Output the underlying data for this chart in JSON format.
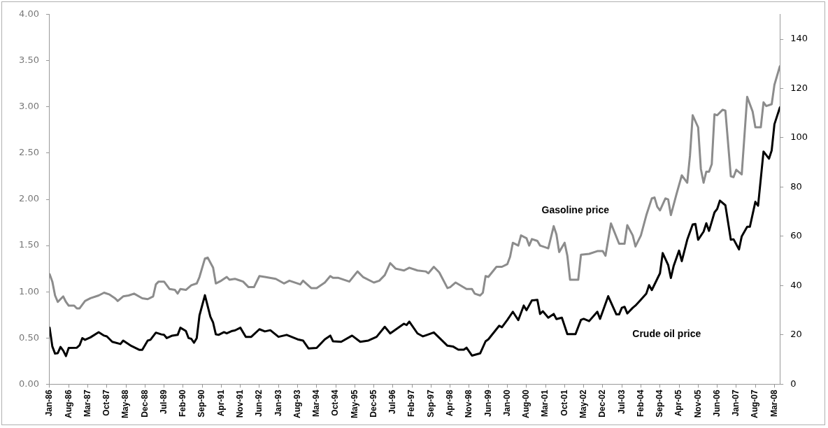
{
  "chart_data": {
    "type": "line",
    "grid": false,
    "legend": false,
    "marker": "none",
    "line_style": "solid",
    "xlim": [
      "1986-01",
      "2008-05"
    ],
    "xticks": [
      {
        "value": "1986-01",
        "label": "Jan-86"
      },
      {
        "value": "1986-08",
        "label": "Aug-86"
      },
      {
        "value": "1987-03",
        "label": "Mar-87"
      },
      {
        "value": "1987-10",
        "label": "Oct-87"
      },
      {
        "value": "1988-05",
        "label": "May-88"
      },
      {
        "value": "1988-12",
        "label": "Dec-88"
      },
      {
        "value": "1989-07",
        "label": "Jul-89"
      },
      {
        "value": "1990-02",
        "label": "Feb-90"
      },
      {
        "value": "1990-09",
        "label": "Sep-90"
      },
      {
        "value": "1991-04",
        "label": "Apr-91"
      },
      {
        "value": "1991-11",
        "label": "Nov-91"
      },
      {
        "value": "1992-06",
        "label": "Jun-92"
      },
      {
        "value": "1993-01",
        "label": "Jan-93"
      },
      {
        "value": "1993-08",
        "label": "Aug-93"
      },
      {
        "value": "1994-03",
        "label": "Mar-94"
      },
      {
        "value": "1994-10",
        "label": "Oct-94"
      },
      {
        "value": "1995-05",
        "label": "May-95"
      },
      {
        "value": "1995-12",
        "label": "Dec-95"
      },
      {
        "value": "1996-07",
        "label": "Jul-96"
      },
      {
        "value": "1997-02",
        "label": "Feb-97"
      },
      {
        "value": "1997-09",
        "label": "Sep-97"
      },
      {
        "value": "1998-04",
        "label": "Apr-98"
      },
      {
        "value": "1998-11",
        "label": "Nov-98"
      },
      {
        "value": "1999-06",
        "label": "Jun-99"
      },
      {
        "value": "2000-01",
        "label": "Jan-00"
      },
      {
        "value": "2000-08",
        "label": "Aug-00"
      },
      {
        "value": "2001-03",
        "label": "Mar-01"
      },
      {
        "value": "2001-10",
        "label": "Oct-01"
      },
      {
        "value": "2002-05",
        "label": "May-02"
      },
      {
        "value": "2002-12",
        "label": "Dec-02"
      },
      {
        "value": "2003-07",
        "label": "Jul-03"
      },
      {
        "value": "2004-02",
        "label": "Feb-04"
      },
      {
        "value": "2004-09",
        "label": "Sep-04"
      },
      {
        "value": "2005-04",
        "label": "Apr-05"
      },
      {
        "value": "2005-11",
        "label": "Nov-05"
      },
      {
        "value": "2006-06",
        "label": "Jun-06"
      },
      {
        "value": "2007-01",
        "label": "Jan-07"
      },
      {
        "value": "2007-08",
        "label": "Aug-07"
      },
      {
        "value": "2008-03",
        "label": "Mar-08"
      }
    ],
    "ylim": [
      0,
      4
    ],
    "yticks": [
      {
        "value": 0,
        "label": "0.00"
      },
      {
        "value": 0.5,
        "label": "0.50"
      },
      {
        "value": 1,
        "label": "1.00"
      },
      {
        "value": 1.5,
        "label": "1.50"
      },
      {
        "value": 2,
        "label": "2.00"
      },
      {
        "value": 2.5,
        "label": "2.50"
      },
      {
        "value": 3,
        "label": "3.00"
      },
      {
        "value": 3.5,
        "label": "3.50"
      },
      {
        "value": 4,
        "label": "4.00"
      }
    ],
    "y2lim": [
      0,
      150
    ],
    "y2ticks": [
      0,
      20,
      40,
      60,
      80,
      100,
      120,
      140
    ],
    "series": [
      {
        "name": "Gasoline price",
        "color": "#8c8c8c",
        "x": [
          "1986-01",
          "1986-02",
          "1986-03",
          "1986-04",
          "1986-06",
          "1986-07",
          "1986-08",
          "1986-10",
          "1986-11",
          "1986-12",
          "1987-02",
          "1987-04",
          "1987-07",
          "1987-09",
          "1987-11",
          "1988-01",
          "1988-02",
          "1988-04",
          "1988-06",
          "1988-08",
          "1988-11",
          "1989-01",
          "1989-03",
          "1989-04",
          "1989-05",
          "1989-07",
          "1989-09",
          "1989-11",
          "1989-12",
          "1990-01",
          "1990-03",
          "1990-05",
          "1990-07",
          "1990-08",
          "1990-10",
          "1990-11",
          "1991-01",
          "1991-02",
          "1991-04",
          "1991-06",
          "1991-07",
          "1991-09",
          "1991-10",
          "1991-12",
          "1992-02",
          "1992-04",
          "1992-06",
          "1992-08",
          "1992-12",
          "1993-03",
          "1993-05",
          "1993-09",
          "1993-10",
          "1994-01",
          "1994-03",
          "1994-06",
          "1994-08",
          "1994-09",
          "1994-11",
          "1995-03",
          "1995-06",
          "1995-08",
          "1995-12",
          "1996-02",
          "1996-04",
          "1996-06",
          "1996-08",
          "1996-11",
          "1997-01",
          "1997-04",
          "1997-07",
          "1997-08",
          "1997-10",
          "1997-12",
          "1998-03",
          "1998-04",
          "1998-06",
          "1998-10",
          "1998-12",
          "1999-01",
          "1999-03",
          "1999-04",
          "1999-05",
          "1999-06",
          "1999-09",
          "1999-11",
          "2000-01",
          "2000-02",
          "2000-03",
          "2000-05",
          "2000-06",
          "2000-08",
          "2000-09",
          "2000-10",
          "2000-12",
          "2001-01",
          "2001-02",
          "2001-04",
          "2001-06",
          "2001-07",
          "2001-08",
          "2001-10",
          "2001-11",
          "2001-12",
          "2002-03",
          "2002-04",
          "2002-07",
          "2002-10",
          "2002-12",
          "2003-01",
          "2003-03",
          "2003-06",
          "2003-08",
          "2003-09",
          "2003-11",
          "2003-12",
          "2004-02",
          "2004-04",
          "2004-06",
          "2004-07",
          "2004-08",
          "2004-09",
          "2004-11",
          "2004-12",
          "2005-01",
          "2005-03",
          "2005-05",
          "2005-07",
          "2005-08",
          "2005-09",
          "2005-11",
          "2005-12",
          "2006-01",
          "2006-02",
          "2006-03",
          "2006-04",
          "2006-05",
          "2006-06",
          "2006-08",
          "2006-09",
          "2006-11",
          "2006-12",
          "2007-01",
          "2007-03",
          "2007-05",
          "2007-07",
          "2007-08",
          "2007-10",
          "2007-11",
          "2007-12",
          "2008-02",
          "2008-03",
          "2008-05"
        ],
        "values": [
          1.19,
          1.11,
          0.96,
          0.89,
          0.95,
          0.89,
          0.85,
          0.85,
          0.82,
          0.82,
          0.9,
          0.93,
          0.96,
          0.99,
          0.97,
          0.93,
          0.9,
          0.95,
          0.96,
          0.98,
          0.93,
          0.92,
          0.95,
          1.08,
          1.11,
          1.11,
          1.03,
          1.02,
          0.98,
          1.03,
          1.02,
          1.07,
          1.09,
          1.16,
          1.36,
          1.37,
          1.26,
          1.09,
          1.12,
          1.16,
          1.13,
          1.14,
          1.13,
          1.11,
          1.05,
          1.05,
          1.17,
          1.16,
          1.14,
          1.09,
          1.12,
          1.08,
          1.12,
          1.04,
          1.04,
          1.1,
          1.17,
          1.15,
          1.15,
          1.11,
          1.22,
          1.16,
          1.1,
          1.12,
          1.18,
          1.31,
          1.25,
          1.23,
          1.26,
          1.23,
          1.22,
          1.2,
          1.27,
          1.21,
          1.04,
          1.05,
          1.1,
          1.03,
          1.03,
          0.98,
          0.96,
          0.99,
          1.17,
          1.16,
          1.27,
          1.27,
          1.3,
          1.38,
          1.53,
          1.5,
          1.61,
          1.58,
          1.5,
          1.57,
          1.55,
          1.5,
          1.49,
          1.47,
          1.71,
          1.62,
          1.43,
          1.53,
          1.39,
          1.13,
          1.13,
          1.4,
          1.41,
          1.44,
          1.44,
          1.39,
          1.74,
          1.52,
          1.52,
          1.72,
          1.61,
          1.49,
          1.61,
          1.83,
          2.01,
          2.02,
          1.92,
          1.88,
          2.01,
          2.0,
          1.83,
          2.05,
          2.26,
          2.18,
          2.47,
          2.91,
          2.78,
          2.33,
          2.18,
          2.3,
          2.3,
          2.38,
          2.92,
          2.91,
          2.97,
          2.96,
          2.25,
          2.24,
          2.32,
          2.27,
          3.11,
          2.95,
          2.78,
          2.78,
          3.05,
          3.01,
          3.03,
          3.24,
          3.44
        ]
      },
      {
        "name": "Crude oil price",
        "color": "#000000",
        "axis": "y2",
        "x": [
          "1986-01",
          "1986-02",
          "1986-03",
          "1986-04",
          "1986-05",
          "1986-06",
          "1986-07",
          "1986-08",
          "1986-11",
          "1986-12",
          "1987-01",
          "1987-02",
          "1987-04",
          "1987-07",
          "1987-09",
          "1987-10",
          "1987-12",
          "1988-03",
          "1988-04",
          "1988-07",
          "1988-10",
          "1988-11",
          "1989-01",
          "1989-02",
          "1989-04",
          "1989-06",
          "1989-07",
          "1989-08",
          "1989-10",
          "1989-12",
          "1990-01",
          "1990-03",
          "1990-04",
          "1990-05",
          "1990-06",
          "1990-07",
          "1990-08",
          "1990-10",
          "1990-12",
          "1991-01",
          "1991-02",
          "1991-03",
          "1991-05",
          "1991-06",
          "1991-08",
          "1991-09",
          "1991-11",
          "1992-01",
          "1992-03",
          "1992-06",
          "1992-08",
          "1992-10",
          "1993-01",
          "1993-04",
          "1993-08",
          "1993-10",
          "1993-12",
          "1994-03",
          "1994-06",
          "1994-08",
          "1994-09",
          "1994-12",
          "1995-04",
          "1995-07",
          "1995-10",
          "1996-01",
          "1996-04",
          "1996-06",
          "1996-11",
          "1996-12",
          "1997-01",
          "1997-04",
          "1997-06",
          "1997-07",
          "1997-10",
          "1998-03",
          "1998-05",
          "1998-07",
          "1998-09",
          "1998-10",
          "1998-12",
          "1999-03",
          "1999-05",
          "1999-06",
          "1999-10",
          "1999-11",
          "2000-01",
          "2000-03",
          "2000-05",
          "2000-07",
          "2000-08",
          "2000-10",
          "2000-12",
          "2001-01",
          "2001-02",
          "2001-04",
          "2001-06",
          "2001-07",
          "2001-09",
          "2001-11",
          "2002-02",
          "2002-04",
          "2002-05",
          "2002-07",
          "2002-10",
          "2002-11",
          "2003-02",
          "2003-05",
          "2003-06",
          "2003-07",
          "2003-08",
          "2003-09",
          "2003-11",
          "2003-12",
          "2004-02",
          "2004-04",
          "2004-05",
          "2004-06",
          "2004-09",
          "2004-10",
          "2004-12",
          "2005-01",
          "2005-02",
          "2005-04",
          "2005-05",
          "2005-07",
          "2005-09",
          "2005-10",
          "2005-11",
          "2006-01",
          "2006-02",
          "2006-03",
          "2006-05",
          "2006-06",
          "2006-07",
          "2006-09",
          "2006-11",
          "2006-12",
          "2007-02",
          "2007-03",
          "2007-05",
          "2007-06",
          "2007-08",
          "2007-09",
          "2007-11",
          "2008-01",
          "2008-02",
          "2008-03",
          "2008-05"
        ],
        "values": [
          22.9,
          15.3,
          12.4,
          12.6,
          15.1,
          13.6,
          11.4,
          14.7,
          14.8,
          15.8,
          18.7,
          18.0,
          19.0,
          21.1,
          19.7,
          19.4,
          17.2,
          16.3,
          17.7,
          15.5,
          13.9,
          13.9,
          17.7,
          18.0,
          20.9,
          20.2,
          20.0,
          18.7,
          19.7,
          20.0,
          22.9,
          21.6,
          18.7,
          18.4,
          16.8,
          18.7,
          27.9,
          36.1,
          27.4,
          25.0,
          20.2,
          20.0,
          21.1,
          20.6,
          21.6,
          21.8,
          22.9,
          19.2,
          19.2,
          22.3,
          21.4,
          21.9,
          19.2,
          20.0,
          18.2,
          17.7,
          14.5,
          14.7,
          18.2,
          19.7,
          17.4,
          17.2,
          19.7,
          17.2,
          17.7,
          19.2,
          23.3,
          20.6,
          24.5,
          24.0,
          25.4,
          20.6,
          19.4,
          19.8,
          21.0,
          15.6,
          15.3,
          14.0,
          14.0,
          14.8,
          11.6,
          12.5,
          17.4,
          18.2,
          23.7,
          23.1,
          26.1,
          29.4,
          26.0,
          31.9,
          30.0,
          34.0,
          34.2,
          28.5,
          29.6,
          27.0,
          28.5,
          26.4,
          27.0,
          20.3,
          20.3,
          26.1,
          26.5,
          25.6,
          29.4,
          26.5,
          35.7,
          28.3,
          28.3,
          31.0,
          31.4,
          28.7,
          31.0,
          31.9,
          34.3,
          36.8,
          40.2,
          38.2,
          45.0,
          53.2,
          48.4,
          43.1,
          47.9,
          54.2,
          49.9,
          58.6,
          64.8,
          65.0,
          58.6,
          61.9,
          65.3,
          62.2,
          69.7,
          71.1,
          74.5,
          72.6,
          58.6,
          58.8,
          54.7,
          60.0,
          63.9,
          63.9,
          74.0,
          72.4,
          94.4,
          91.5,
          94.9,
          105.5,
          112.3
        ]
      }
    ]
  }
}
